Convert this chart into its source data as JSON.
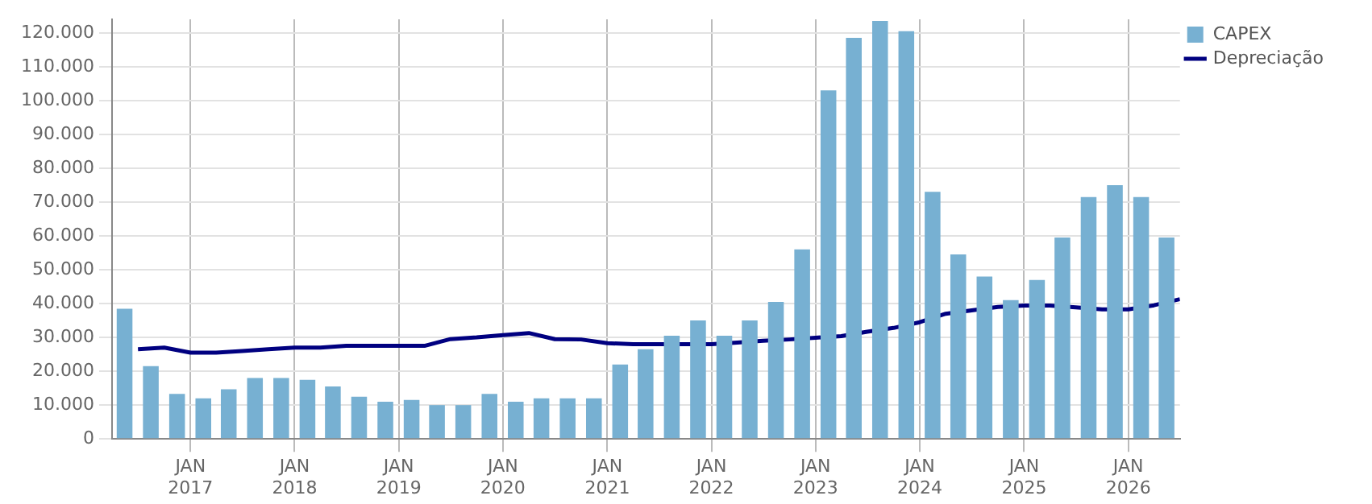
{
  "chart_data": {
    "type": "bar",
    "x": [
      "2016-05-15",
      "2016-08-15",
      "2016-11-15",
      "2017-02-15",
      "2017-05-15",
      "2017-08-15",
      "2017-11-15",
      "2018-02-15",
      "2018-05-15",
      "2018-08-15",
      "2018-11-15",
      "2019-02-15",
      "2019-05-15",
      "2019-08-15",
      "2019-11-15",
      "2020-02-15",
      "2020-05-15",
      "2020-08-15",
      "2020-11-15",
      "2021-02-15",
      "2021-05-15",
      "2021-08-15",
      "2021-11-15",
      "2022-02-15",
      "2022-05-15",
      "2022-08-15",
      "2022-11-15",
      "2023-02-15",
      "2023-05-15",
      "2023-08-15",
      "2023-11-15",
      "2024-02-15",
      "2024-05-15",
      "2024-08-15",
      "2024-11-15",
      "2025-02-15",
      "2025-05-15",
      "2025-08-15",
      "2025-11-15",
      "2026-02-15",
      "2026-05-15"
    ],
    "series": [
      {
        "name": "CAPEX",
        "color": "#77b0d2",
        "values": [
          38500,
          21500,
          13300,
          12000,
          14700,
          18000,
          18000,
          17500,
          15500,
          12500,
          11000,
          11500,
          10000,
          10000,
          13300,
          11000,
          12000,
          12000,
          12000,
          22000,
          26500,
          30500,
          35000,
          30500,
          35000,
          40500,
          56000,
          103000,
          118500,
          123500,
          120500,
          73000,
          54500,
          48000,
          41000,
          47000,
          59500,
          71500,
          75000,
          71500,
          59500
        ]
      },
      {
        "name": "Depreciação",
        "type": "line",
        "color": "#000080",
        "x": [
          "2016-07-01",
          "2016-10-01",
          "2017-01-01",
          "2017-04-01",
          "2017-07-01",
          "2017-10-01",
          "2018-01-01",
          "2018-04-01",
          "2018-07-01",
          "2018-10-01",
          "2019-01-01",
          "2019-04-01",
          "2019-07-01",
          "2019-10-01",
          "2020-01-01",
          "2020-04-01",
          "2020-07-01",
          "2020-10-01",
          "2021-01-01",
          "2021-04-01",
          "2021-07-01",
          "2021-10-01",
          "2022-01-01",
          "2022-04-01",
          "2022-07-01",
          "2022-10-01",
          "2023-01-01",
          "2023-04-01",
          "2023-07-01",
          "2023-10-01",
          "2024-01-01",
          "2024-04-01",
          "2024-07-01",
          "2024-10-01",
          "2025-01-01",
          "2025-04-01",
          "2025-07-01",
          "2025-10-01",
          "2026-01-01",
          "2026-04-01",
          "2026-07-01"
        ],
        "values": [
          26500,
          27000,
          25500,
          25500,
          26000,
          26500,
          27000,
          27000,
          27500,
          27500,
          27500,
          27500,
          29500,
          30000,
          30700,
          31300,
          29500,
          29400,
          28300,
          28000,
          28000,
          28000,
          28000,
          28500,
          29000,
          29400,
          29900,
          30400,
          31700,
          32800,
          34500,
          37000,
          38000,
          39000,
          39400,
          39400,
          38900,
          38300,
          38300,
          39500,
          41300
        ]
      }
    ],
    "xlim": [
      "2016-04-01",
      "2026-07-01"
    ],
    "xticks": [
      {
        "value": "2017-01-01",
        "label": "JAN 2017"
      },
      {
        "value": "2018-01-01",
        "label": "JAN 2018"
      },
      {
        "value": "2019-01-01",
        "label": "JAN 2019"
      },
      {
        "value": "2020-01-01",
        "label": "JAN 2020"
      },
      {
        "value": "2021-01-01",
        "label": "JAN 2021"
      },
      {
        "value": "2022-01-01",
        "label": "JAN 2022"
      },
      {
        "value": "2023-01-01",
        "label": "JAN 2023"
      },
      {
        "value": "2024-01-01",
        "label": "JAN 2024"
      },
      {
        "value": "2025-01-01",
        "label": "JAN 2025"
      },
      {
        "value": "2026-01-01",
        "label": "JAN 2026"
      }
    ],
    "ylim": [
      0,
      124000
    ],
    "yticks": [
      {
        "value": 0,
        "label": "0"
      },
      {
        "value": 10000,
        "label": "10.000"
      },
      {
        "value": 20000,
        "label": "20.000"
      },
      {
        "value": 30000,
        "label": "30.000"
      },
      {
        "value": 40000,
        "label": "40.000"
      },
      {
        "value": 50000,
        "label": "50.000"
      },
      {
        "value": 60000,
        "label": "60.000"
      },
      {
        "value": 70000,
        "label": "70.000"
      },
      {
        "value": 80000,
        "label": "80.000"
      },
      {
        "value": 90000,
        "label": "90.000"
      },
      {
        "value": 100000,
        "label": "100.000"
      },
      {
        "value": 110000,
        "label": "110.000"
      },
      {
        "value": 120000,
        "label": "120.000"
      }
    ],
    "grid": true,
    "legend": "top right"
  }
}
